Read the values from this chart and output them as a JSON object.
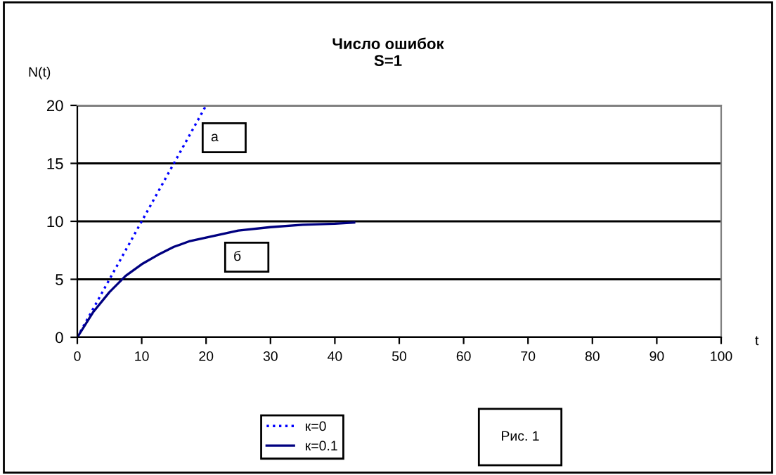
{
  "chart_data": {
    "type": "line",
    "title": "Число ошибок\nS=1",
    "ylabel": "N(t)",
    "xlabel": "t",
    "xlim": [
      0,
      100
    ],
    "xticks": [
      0,
      10,
      20,
      30,
      40,
      50,
      60,
      70,
      80,
      90,
      100
    ],
    "ylim": [
      0,
      20
    ],
    "yticks": [
      0,
      5,
      10,
      15,
      20
    ],
    "grid": "y",
    "legend": "bottom",
    "series": [
      {
        "name": "к=0",
        "color": "#0000ff",
        "line_style": "dotted",
        "x": [
          0,
          5,
          10,
          15,
          20
        ],
        "values": [
          0,
          5,
          10,
          15,
          20
        ]
      },
      {
        "name": "к=0.1",
        "color": "#000080",
        "line_style": "solid",
        "x": [
          0,
          2.5,
          5,
          7.5,
          10,
          12.5,
          15,
          17.5,
          20,
          25,
          30,
          35,
          40,
          43
        ],
        "values": [
          0,
          2.2,
          3.9,
          5.3,
          6.3,
          7.1,
          7.8,
          8.3,
          8.6,
          9.2,
          9.5,
          9.7,
          9.8,
          9.9
        ]
      }
    ],
    "annotations": [
      "а",
      "б",
      "Рис. 1"
    ]
  }
}
